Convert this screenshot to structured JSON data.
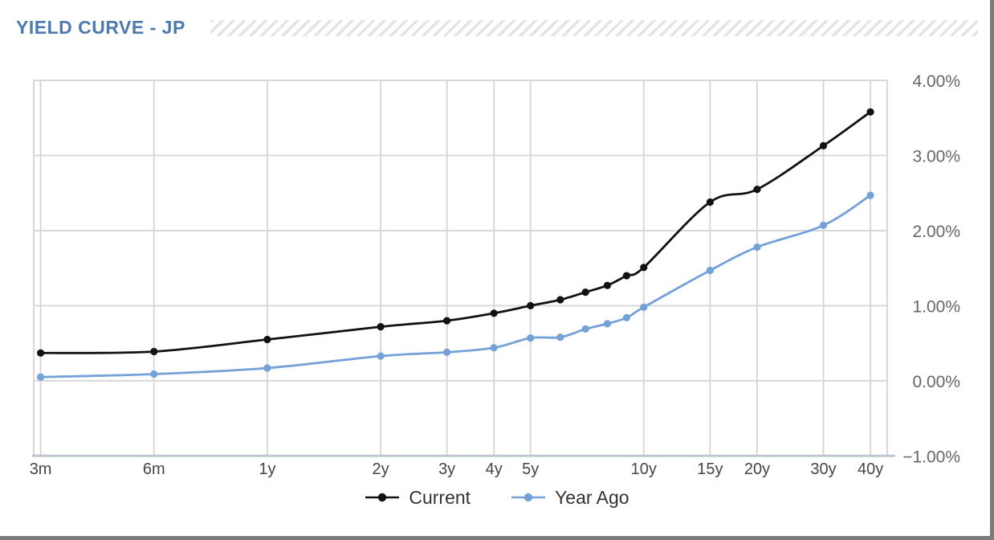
{
  "header": {
    "title": "YIELD CURVE - JP"
  },
  "colors": {
    "title": "#4d79ae",
    "current": "#121212",
    "year_ago": "#74a1d8",
    "grid": "#d8d8d8",
    "axis_line": "#bdc7d2",
    "x_label": "#454545",
    "y_label": "#666666",
    "legend_text": "#333333",
    "hatch": "#e4e4e4",
    "edge": "#7b7b7b"
  },
  "chart_data": {
    "type": "line",
    "title": "YIELD CURVE - JP",
    "x_scale": "log",
    "grid": true,
    "legend_position": "bottom",
    "x_unit": "maturity (years)",
    "x": [
      0.25,
      0.5,
      1,
      2,
      3,
      4,
      5,
      6,
      7,
      8,
      9,
      10,
      15,
      20,
      30,
      40
    ],
    "x_tick_values": [
      0.25,
      0.5,
      1,
      2,
      3,
      4,
      5,
      10,
      15,
      20,
      30,
      40
    ],
    "x_tick_labels": [
      "3m",
      "6m",
      "1y",
      "2y",
      "3y",
      "4y",
      "5y",
      "10y",
      "15y",
      "20y",
      "30y",
      "40y"
    ],
    "ylim": [
      -1,
      4
    ],
    "y_tick_values": [
      4,
      3,
      2,
      1,
      0,
      -1
    ],
    "y_tick_labels": [
      "4.00%",
      "3.00%",
      "2.00%",
      "1.00%",
      "0.00%",
      "−1.00%"
    ],
    "series": [
      {
        "name": "Current",
        "color_key": "current",
        "values": [
          0.37,
          0.39,
          0.55,
          0.72,
          0.8,
          0.9,
          1.0,
          1.08,
          1.18,
          1.27,
          1.4,
          1.51,
          2.38,
          2.55,
          3.13,
          3.58
        ]
      },
      {
        "name": "Year Ago",
        "color_key": "year_ago",
        "values": [
          0.05,
          0.09,
          0.17,
          0.33,
          0.38,
          0.44,
          0.57,
          0.58,
          0.69,
          0.76,
          0.84,
          0.98,
          1.47,
          1.78,
          2.07,
          2.47
        ]
      }
    ]
  }
}
